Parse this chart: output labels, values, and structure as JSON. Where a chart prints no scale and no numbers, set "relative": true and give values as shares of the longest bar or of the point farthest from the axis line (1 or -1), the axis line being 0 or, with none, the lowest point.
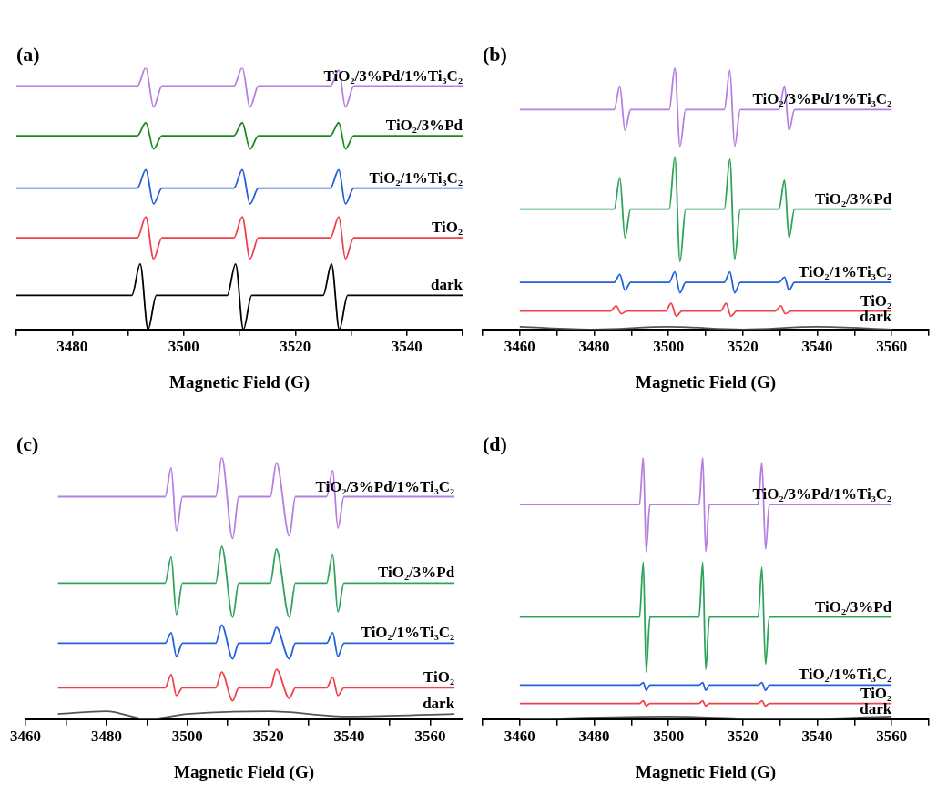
{
  "chart_data": [
    {
      "type": "line",
      "title": "(a)",
      "xlabel": "Magnetic Field (G)",
      "relative": true,
      "grid": false,
      "xlim": [
        3470,
        3550
      ],
      "xticks": [
        {
          "value": 3470,
          "label": null
        },
        3480,
        {
          "value": 3490,
          "label": null
        },
        3500,
        {
          "value": 3510,
          "label": null
        },
        3520,
        {
          "value": 3530,
          "label": null
        },
        3540,
        {
          "value": 3550,
          "label": null
        }
      ],
      "series": [
        {
          "name": "TiO₂/3%Pd/1%Ti₃C₂",
          "color": "#b57ee0",
          "x": [
            3470,
            3491.7,
            3493.2,
            3494.6,
            3496.1,
            3509.0,
            3510.5,
            3511.9,
            3513.4,
            3526.3,
            3527.8,
            3529.0,
            3530.5,
            3550
          ],
          "values": [
            0.93,
            0.93,
            1.0,
            0.85,
            0.93,
            0.93,
            1.0,
            0.85,
            0.93,
            0.93,
            0.99,
            0.85,
            0.93,
            0.93
          ]
        },
        {
          "name": "TiO₂/3%Pd",
          "color": "#1a8a1a",
          "x": [
            3470,
            3491.7,
            3493.2,
            3494.6,
            3496.1,
            3509.0,
            3510.5,
            3511.9,
            3513.4,
            3526.3,
            3527.8,
            3529.0,
            3530.5,
            3550
          ],
          "values": [
            0.74,
            0.74,
            0.79,
            0.69,
            0.74,
            0.74,
            0.79,
            0.69,
            0.74,
            0.74,
            0.79,
            0.69,
            0.74,
            0.74
          ]
        },
        {
          "name": "TiO₂/1%Ti₃C₂",
          "color": "#1f5fe0",
          "x": [
            3470,
            3491.7,
            3493.2,
            3494.6,
            3496.1,
            3509.0,
            3510.5,
            3511.9,
            3513.4,
            3526.3,
            3527.8,
            3529.0,
            3530.5,
            3550
          ],
          "values": [
            0.54,
            0.54,
            0.61,
            0.48,
            0.54,
            0.54,
            0.61,
            0.48,
            0.54,
            0.54,
            0.61,
            0.48,
            0.54,
            0.54
          ]
        },
        {
          "name": "TiO₂",
          "color": "#f0404a",
          "x": [
            3470,
            3491.7,
            3493.2,
            3494.6,
            3496.1,
            3509.0,
            3510.5,
            3511.9,
            3513.4,
            3526.3,
            3527.8,
            3529.0,
            3530.5,
            3550
          ],
          "values": [
            0.35,
            0.35,
            0.43,
            0.27,
            0.35,
            0.35,
            0.43,
            0.27,
            0.35,
            0.35,
            0.43,
            0.27,
            0.35,
            0.35
          ]
        },
        {
          "name": "dark",
          "color": "#000000",
          "x": [
            3470,
            3490.7,
            3492.2,
            3493.6,
            3495.1,
            3507.8,
            3509.3,
            3510.7,
            3512.2,
            3525.0,
            3526.5,
            3527.9,
            3529.4,
            3550
          ],
          "values": [
            0.13,
            0.13,
            0.25,
            0.0,
            0.13,
            0.13,
            0.25,
            0.0,
            0.13,
            0.13,
            0.25,
            0.0,
            0.13,
            0.13
          ]
        }
      ]
    },
    {
      "type": "line",
      "title": "(b)",
      "xlabel": "Magnetic Field (G)",
      "relative": true,
      "grid": false,
      "xlim": [
        3450,
        3570
      ],
      "xticks": [
        {
          "value": 3450,
          "label": null
        },
        3460,
        {
          "value": 3470,
          "label": null
        },
        3480,
        {
          "value": 3490,
          "label": null
        },
        3500,
        {
          "value": 3510,
          "label": null
        },
        3520,
        {
          "value": 3530,
          "label": null
        },
        3540,
        {
          "value": 3550,
          "label": null
        },
        3560,
        {
          "value": 3570,
          "label": null
        }
      ],
      "series": [
        {
          "name": "TiO₂/3%Pd/1%Ti₃C₂",
          "color": "#b57ee0",
          "x": [
            3460,
            3485.4,
            3486.9,
            3488.3,
            3489.8,
            3500.2,
            3501.7,
            3503.1,
            3504.6,
            3515.0,
            3516.5,
            3517.8,
            3519.3,
            3529.7,
            3531.2,
            3532.4,
            3533.9,
            3560
          ],
          "values": [
            0.84,
            0.84,
            0.93,
            0.76,
            0.84,
            0.84,
            1.0,
            0.7,
            0.84,
            0.84,
            0.99,
            0.7,
            0.84,
            0.84,
            0.93,
            0.76,
            0.84,
            0.84
          ]
        },
        {
          "name": "TiO₂/3%Pd",
          "color": "#2ea35a",
          "x": [
            3460,
            3485.4,
            3486.9,
            3488.3,
            3489.8,
            3500.2,
            3501.7,
            3503.1,
            3504.6,
            3515.0,
            3516.5,
            3517.8,
            3519.3,
            3529.7,
            3531.2,
            3532.4,
            3533.9,
            3560
          ],
          "values": [
            0.46,
            0.46,
            0.58,
            0.35,
            0.46,
            0.46,
            0.66,
            0.26,
            0.46,
            0.46,
            0.65,
            0.27,
            0.46,
            0.46,
            0.57,
            0.35,
            0.46,
            0.46
          ]
        },
        {
          "name": "TiO₂/1%Ti₃C₂",
          "color": "#1f5fe0",
          "x": [
            3460,
            3485.4,
            3486.9,
            3488.3,
            3489.8,
            3500.2,
            3501.7,
            3503.1,
            3504.6,
            3515.0,
            3516.5,
            3517.8,
            3519.3,
            3529.7,
            3531.2,
            3532.4,
            3533.9,
            3560
          ],
          "values": [
            0.18,
            0.18,
            0.21,
            0.15,
            0.18,
            0.18,
            0.22,
            0.14,
            0.18,
            0.18,
            0.22,
            0.14,
            0.18,
            0.18,
            0.2,
            0.15,
            0.18,
            0.18
          ]
        },
        {
          "name": "TiO₂",
          "color": "#f0404a",
          "x": [
            3460,
            3484.4,
            3485.9,
            3487.3,
            3488.8,
            3499.2,
            3500.7,
            3502.1,
            3503.6,
            3514.0,
            3515.5,
            3516.8,
            3518.3,
            3528.7,
            3530.2,
            3531.4,
            3532.9,
            3560
          ],
          "values": [
            0.07,
            0.07,
            0.09,
            0.06,
            0.07,
            0.07,
            0.1,
            0.05,
            0.07,
            0.07,
            0.1,
            0.05,
            0.07,
            0.07,
            0.09,
            0.06,
            0.07,
            0.07
          ]
        },
        {
          "name": "dark",
          "color": "#555555",
          "x": [
            3460,
            3480,
            3500,
            3520,
            3540,
            3560
          ],
          "values": [
            0.01,
            0.0,
            0.01,
            0.0,
            0.01,
            0.0
          ]
        }
      ]
    },
    {
      "type": "line",
      "title": "(c)",
      "xlabel": "Magnetic Field (G)",
      "relative": true,
      "grid": false,
      "xlim": [
        3460,
        3568
      ],
      "xticks": [
        3460,
        {
          "value": 3470,
          "label": null
        },
        3480,
        {
          "value": 3490,
          "label": null
        },
        3500,
        {
          "value": 3510,
          "label": null
        },
        3520,
        {
          "value": 3530,
          "label": null
        },
        3540,
        {
          "value": 3550,
          "label": null
        },
        3560
      ],
      "series": [
        {
          "name": "TiO₂/3%Pd/1%Ti₃C₂",
          "color": "#b57ee0",
          "x": [
            3468,
            3494.5,
            3496.0,
            3497.3,
            3498.8,
            3507.0,
            3508.5,
            3511.2,
            3512.7,
            3520.5,
            3522.0,
            3525.2,
            3526.7,
            3534.4,
            3535.9,
            3537.2,
            3538.7,
            3566
          ],
          "values": [
            0.85,
            0.85,
            0.96,
            0.72,
            0.85,
            0.85,
            1.0,
            0.69,
            0.85,
            0.85,
            0.98,
            0.7,
            0.85,
            0.85,
            0.95,
            0.73,
            0.85,
            0.85
          ]
        },
        {
          "name": "TiO₂/3%Pd",
          "color": "#2ea35a",
          "x": [
            3468,
            3494.5,
            3496.0,
            3497.3,
            3498.8,
            3507.0,
            3508.5,
            3511.2,
            3512.7,
            3520.5,
            3522.0,
            3525.2,
            3526.7,
            3534.4,
            3535.9,
            3537.2,
            3538.7,
            3566
          ],
          "values": [
            0.52,
            0.52,
            0.62,
            0.4,
            0.52,
            0.52,
            0.66,
            0.39,
            0.52,
            0.52,
            0.65,
            0.39,
            0.52,
            0.52,
            0.63,
            0.41,
            0.52,
            0.52
          ]
        },
        {
          "name": "TiO₂/1%Ti₃C₂",
          "color": "#1f5fe0",
          "x": [
            3468,
            3494.5,
            3496.0,
            3497.3,
            3498.8,
            3507.0,
            3508.5,
            3511.2,
            3512.7,
            3520.5,
            3522.0,
            3525.2,
            3526.7,
            3534.4,
            3535.9,
            3537.2,
            3538.7,
            3566
          ],
          "values": [
            0.29,
            0.29,
            0.33,
            0.24,
            0.29,
            0.29,
            0.36,
            0.23,
            0.29,
            0.29,
            0.35,
            0.23,
            0.29,
            0.29,
            0.33,
            0.24,
            0.29,
            0.29
          ]
        },
        {
          "name": "TiO₂",
          "color": "#f0404a",
          "x": [
            3468,
            3494.5,
            3496.0,
            3497.3,
            3498.8,
            3507.0,
            3508.5,
            3511.2,
            3512.7,
            3520.5,
            3522.0,
            3525.2,
            3526.7,
            3534.4,
            3535.9,
            3537.2,
            3538.7,
            3566
          ],
          "values": [
            0.12,
            0.12,
            0.17,
            0.09,
            0.12,
            0.12,
            0.18,
            0.07,
            0.12,
            0.12,
            0.19,
            0.08,
            0.12,
            0.12,
            0.16,
            0.09,
            0.12,
            0.12
          ]
        },
        {
          "name": "dark",
          "color": "#555555",
          "x": [
            3468,
            3480,
            3490,
            3500,
            3520,
            3540,
            3566
          ],
          "values": [
            0.02,
            0.03,
            0.0,
            0.02,
            0.03,
            0.01,
            0.02
          ]
        }
      ]
    },
    {
      "type": "line",
      "title": "(d)",
      "xlabel": "Magnetic Field (G)",
      "relative": true,
      "grid": false,
      "xlim": [
        3450,
        3570
      ],
      "xticks": [
        {
          "value": 3450,
          "label": null
        },
        3460,
        {
          "value": 3470,
          "label": null
        },
        3480,
        {
          "value": 3490,
          "label": null
        },
        3500,
        {
          "value": 3510,
          "label": null
        },
        3520,
        {
          "value": 3530,
          "label": null
        },
        3540,
        {
          "value": 3550,
          "label": null
        },
        3560,
        {
          "value": 3570,
          "label": null
        }
      ],
      "series": [
        {
          "name": "TiO₂/3%Pd/1%Ti₃C₂",
          "color": "#b57ee0",
          "x": [
            3460,
            3492.2,
            3493.2,
            3494.0,
            3495.0,
            3508.2,
            3509.2,
            3510.0,
            3511.0,
            3524.1,
            3525.1,
            3526.1,
            3527.1,
            3560
          ],
          "values": [
            0.82,
            0.82,
            1.0,
            0.64,
            0.82,
            0.82,
            1.0,
            0.64,
            0.82,
            0.82,
            0.98,
            0.65,
            0.82,
            0.82
          ]
        },
        {
          "name": "TiO₂/3%Pd",
          "color": "#2ea35a",
          "x": [
            3460,
            3492.2,
            3493.2,
            3494.0,
            3495.0,
            3508.2,
            3509.2,
            3510.0,
            3511.0,
            3524.1,
            3525.1,
            3526.1,
            3527.1,
            3560
          ],
          "values": [
            0.39,
            0.39,
            0.6,
            0.18,
            0.39,
            0.39,
            0.6,
            0.19,
            0.39,
            0.39,
            0.58,
            0.21,
            0.39,
            0.39
          ]
        },
        {
          "name": "TiO₂/1%Ti₃C₂",
          "color": "#1f5fe0",
          "x": [
            3460,
            3492.2,
            3493.2,
            3494.0,
            3495.0,
            3508.2,
            3509.2,
            3510.0,
            3511.0,
            3524.1,
            3525.1,
            3526.1,
            3527.1,
            3560
          ],
          "values": [
            0.13,
            0.13,
            0.14,
            0.11,
            0.13,
            0.13,
            0.14,
            0.11,
            0.13,
            0.13,
            0.14,
            0.11,
            0.13,
            0.13
          ]
        },
        {
          "name": "TiO₂",
          "color": "#f0404a",
          "x": [
            3460,
            3492.2,
            3493.2,
            3494.0,
            3495.0,
            3508.2,
            3509.2,
            3510.0,
            3511.0,
            3524.1,
            3525.1,
            3526.1,
            3527.1,
            3560
          ],
          "values": [
            0.06,
            0.06,
            0.07,
            0.05,
            0.06,
            0.06,
            0.07,
            0.05,
            0.06,
            0.06,
            0.07,
            0.05,
            0.06,
            0.06
          ]
        },
        {
          "name": "dark",
          "color": "#555555",
          "x": [
            3460,
            3500,
            3530,
            3560
          ],
          "values": [
            0.0,
            0.01,
            0.0,
            0.01
          ]
        }
      ]
    }
  ]
}
